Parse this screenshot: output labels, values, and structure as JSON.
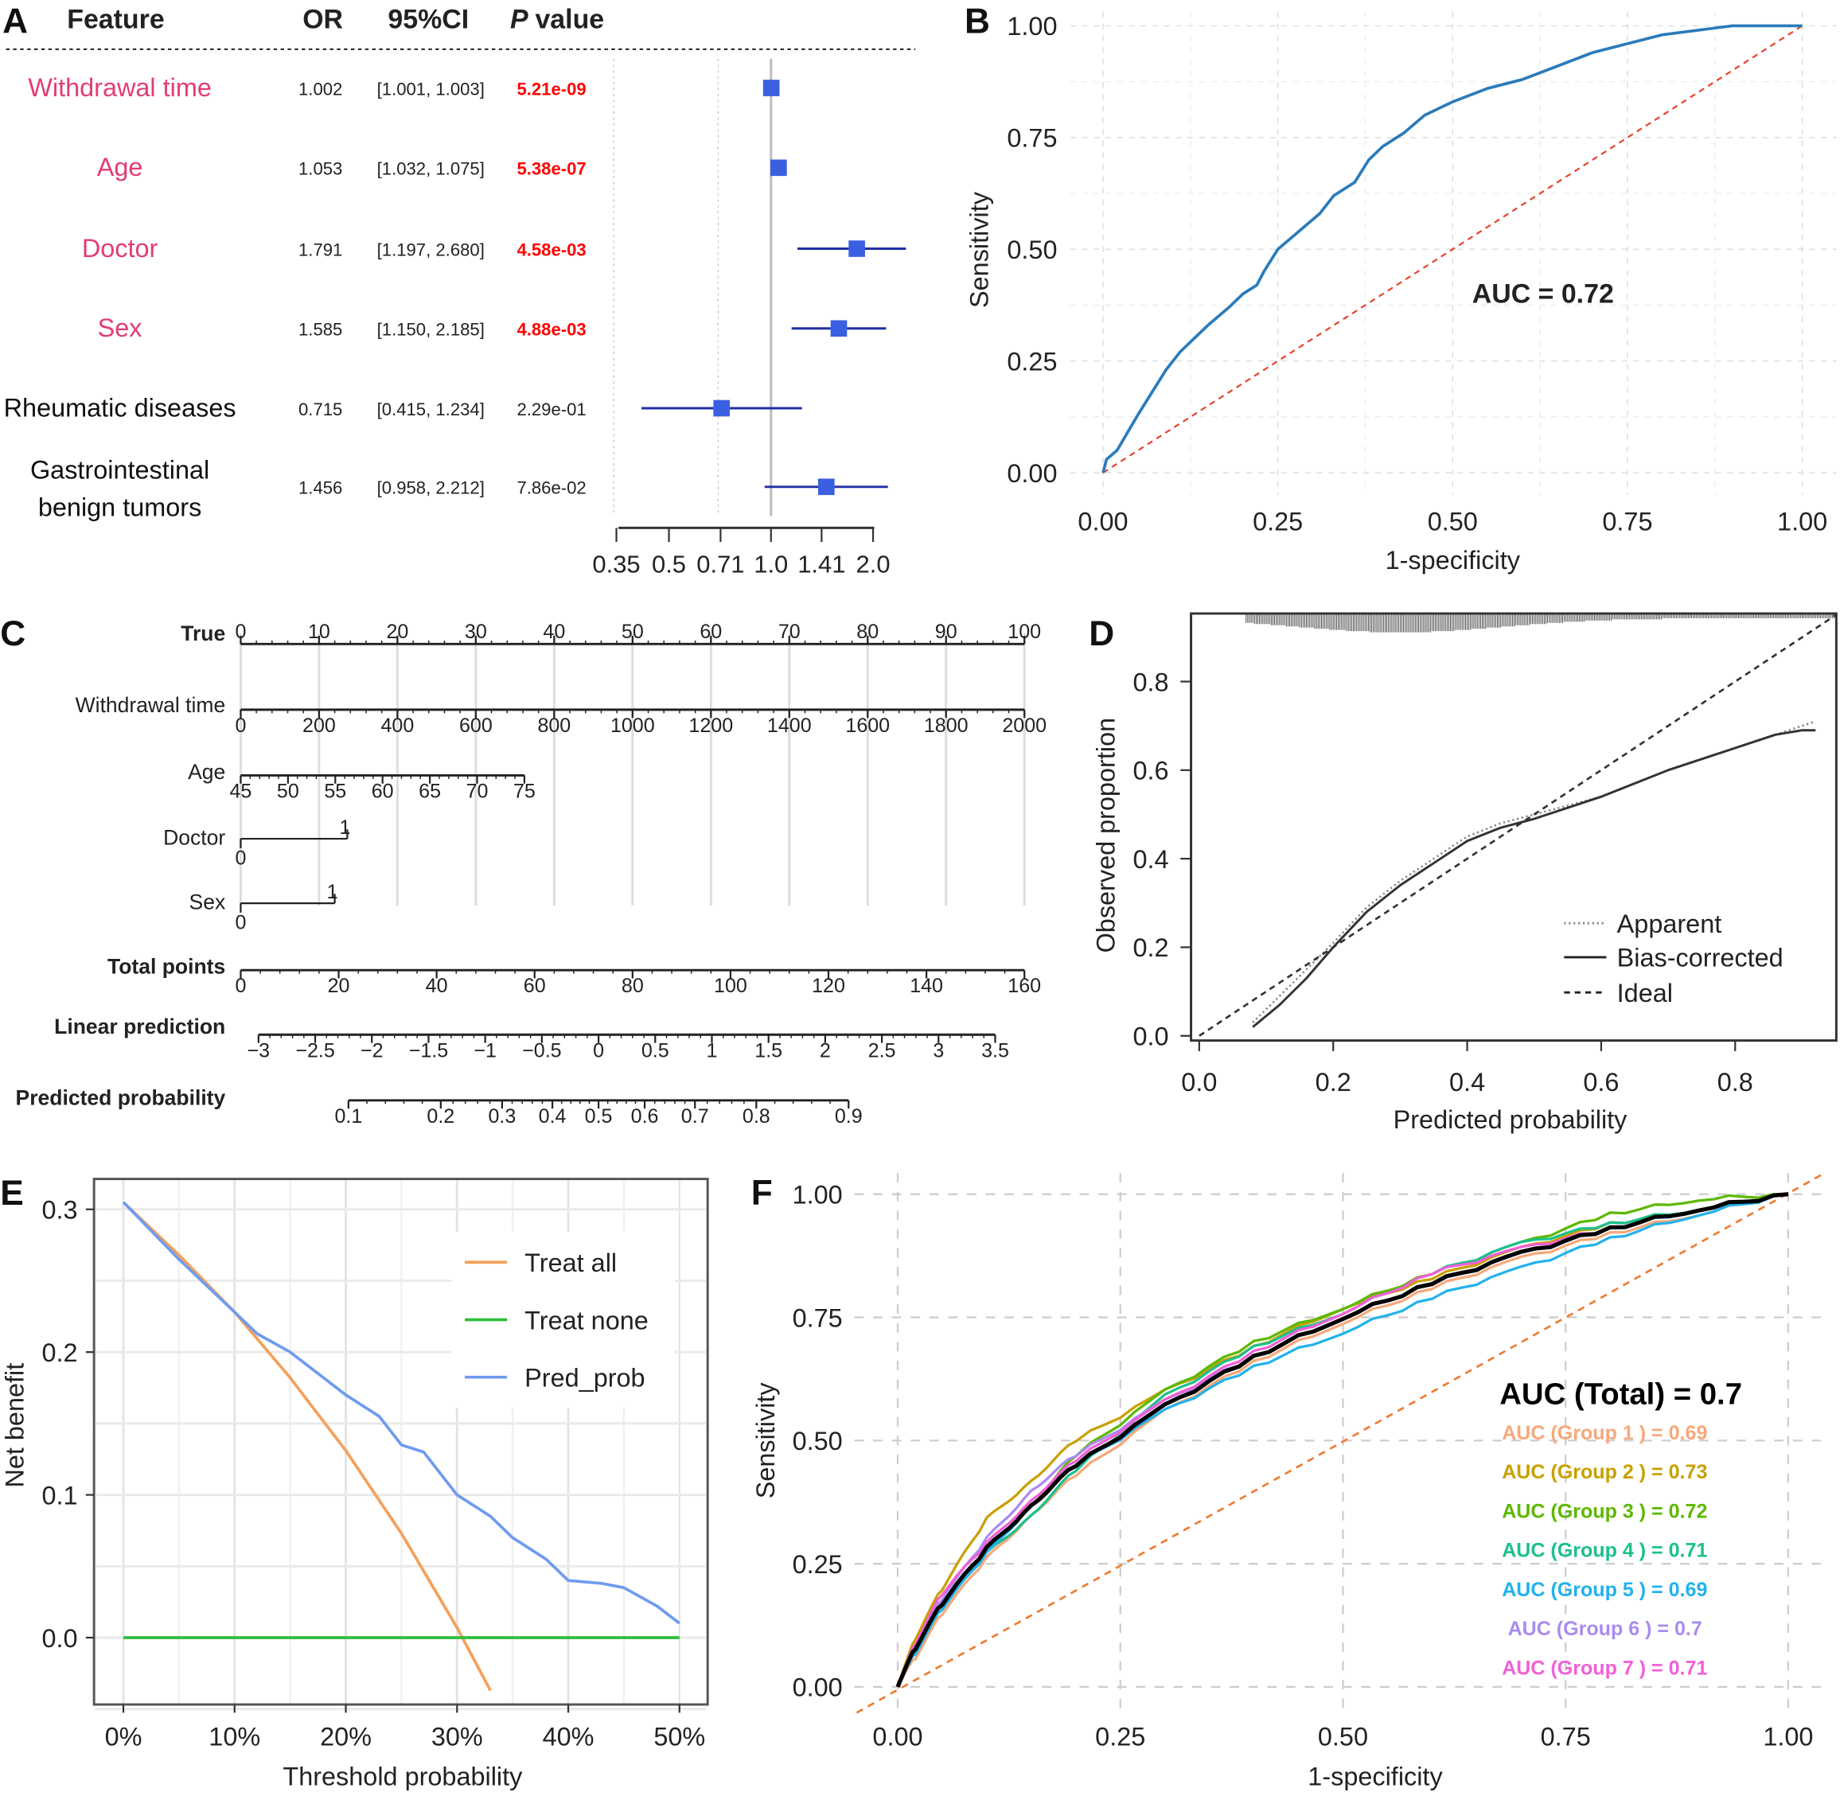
{
  "panels": [
    "A",
    "B",
    "C",
    "D",
    "E",
    "F"
  ],
  "chart_data": [
    {
      "panel": "A",
      "type": "forest",
      "headers": {
        "feature": "Feature",
        "or": "OR",
        "ci": "95%CI",
        "p_italic": "P",
        "p_rest": "value"
      },
      "xscale": "log",
      "xticks": [
        "0.35",
        "0.5",
        "0.71",
        "1.0",
        "1.41",
        "2.0"
      ],
      "reference_line": 1.0,
      "colors": {
        "significant_feature": "#E23C78",
        "significant_p": "#FF0000",
        "marker": "#3A5FE0",
        "ci_line": "#1F2FA8"
      },
      "rows": [
        {
          "feature": [
            "Withdrawal time"
          ],
          "or": "1.002",
          "ci": "[1.001, 1.003]",
          "p": "5.21e-09",
          "significant": true,
          "est": 1.002,
          "lo": 1.001,
          "hi": 1.003
        },
        {
          "feature": [
            "Age"
          ],
          "or": "1.053",
          "ci": "[1.032, 1.075]",
          "p": "5.38e-07",
          "significant": true,
          "est": 1.053,
          "lo": 1.032,
          "hi": 1.075
        },
        {
          "feature": [
            "Doctor"
          ],
          "or": "1.791",
          "ci": "[1.197, 2.680]",
          "p": "4.58e-03",
          "significant": true,
          "est": 1.791,
          "lo": 1.197,
          "hi": 2.68
        },
        {
          "feature": [
            "Sex"
          ],
          "or": "1.585",
          "ci": "[1.150, 2.185]",
          "p": "4.88e-03",
          "significant": true,
          "est": 1.585,
          "lo": 1.15,
          "hi": 2.185
        },
        {
          "feature": [
            "Rheumatic diseases"
          ],
          "or": "0.715",
          "ci": "[0.415, 1.234]",
          "p": "2.29e-01",
          "significant": false,
          "est": 0.715,
          "lo": 0.415,
          "hi": 1.234
        },
        {
          "feature": [
            "Gastrointestinal",
            "benign tumors"
          ],
          "or": "1.456",
          "ci": "[0.958, 2.212]",
          "p": "7.86e-02",
          "significant": false,
          "est": 1.456,
          "lo": 0.958,
          "hi": 2.212
        }
      ]
    },
    {
      "panel": "B",
      "type": "line",
      "xlabel": "1-specificity",
      "ylabel": "Sensitivity",
      "xlim": [
        0,
        1
      ],
      "ylim": [
        0,
        1
      ],
      "xticks": [
        "0.00",
        "0.25",
        "0.50",
        "0.75",
        "1.00"
      ],
      "yticks": [
        "0.00",
        "0.25",
        "0.50",
        "0.75",
        "1.00"
      ],
      "grid": true,
      "annotation": "AUC = 0.72",
      "colors": {
        "curve": "#2B7BBA",
        "diagonal": "#E8432E"
      },
      "x": [
        0,
        0.005,
        0.02,
        0.035,
        0.05,
        0.07,
        0.09,
        0.11,
        0.13,
        0.15,
        0.18,
        0.2,
        0.22,
        0.23,
        0.25,
        0.28,
        0.31,
        0.33,
        0.36,
        0.38,
        0.4,
        0.43,
        0.46,
        0.5,
        0.55,
        0.6,
        0.65,
        0.7,
        0.75,
        0.8,
        0.85,
        0.9,
        1
      ],
      "y": [
        0,
        0.03,
        0.05,
        0.09,
        0.13,
        0.18,
        0.23,
        0.27,
        0.3,
        0.33,
        0.37,
        0.4,
        0.42,
        0.45,
        0.5,
        0.54,
        0.58,
        0.62,
        0.65,
        0.7,
        0.73,
        0.76,
        0.8,
        0.83,
        0.86,
        0.88,
        0.91,
        0.94,
        0.96,
        0.98,
        0.99,
        1,
        1
      ]
    },
    {
      "panel": "C",
      "type": "nomogram",
      "rows": [
        {
          "label": "True",
          "bold": true,
          "min": 0,
          "max": 100,
          "ticks": [
            "0",
            "10",
            "20",
            "30",
            "40",
            "50",
            "60",
            "70",
            "80",
            "90",
            "100"
          ],
          "points_range": [
            0,
            100
          ],
          "labels_above": true
        },
        {
          "label": "Withdrawal time",
          "bold": false,
          "min": 0,
          "max": 2000,
          "ticks": [
            "0",
            "200",
            "400",
            "600",
            "800",
            "1000",
            "1200",
            "1400",
            "1600",
            "1800",
            "2000"
          ],
          "points_range": [
            0,
            100
          ]
        },
        {
          "label": "Age",
          "bold": false,
          "min": 45,
          "max": 75,
          "ticks": [
            "45",
            "50",
            "55",
            "60",
            "65",
            "70",
            "75"
          ],
          "points_range": [
            0,
            36.2
          ]
        },
        {
          "label": "Doctor",
          "bold": false,
          "categorical": true,
          "levels": [
            "0",
            "1"
          ],
          "points_range": [
            0,
            13.6
          ]
        },
        {
          "label": "Sex",
          "bold": false,
          "categorical": true,
          "levels": [
            "0",
            "1"
          ],
          "points_range": [
            0,
            12
          ]
        },
        {
          "label": "Total points",
          "bold": true,
          "min": 0,
          "max": 160,
          "ticks": [
            "0",
            "20",
            "40",
            "60",
            "80",
            "100",
            "120",
            "140",
            "160"
          ],
          "points_range": [
            0,
            100
          ]
        },
        {
          "label": "Linear prediction",
          "bold": true,
          "min": -3,
          "max": 3.5,
          "ticks": [
            "−3",
            "−2.5",
            "−2",
            "−1.5",
            "−1",
            "−0.5",
            "0",
            "0.5",
            "1",
            "1.5",
            "2",
            "2.5",
            "3",
            "3.5"
          ]
        },
        {
          "label": "Predicted probability",
          "bold": true,
          "scale": "logit",
          "ticks": [
            "0.1",
            "0.2",
            "0.3",
            "0.4",
            "0.5",
            "0.6",
            "0.7",
            "0.8",
            "0.9"
          ]
        }
      ]
    },
    {
      "panel": "D",
      "type": "line",
      "xlabel": "Predicted probability",
      "ylabel": "Observed proportion",
      "xticks": [
        "0.0",
        "0.2",
        "0.4",
        "0.6",
        "0.8"
      ],
      "yticks": [
        "0.0",
        "0.2",
        "0.4",
        "0.6",
        "0.8"
      ],
      "legend": {
        "position": "bottom-right",
        "entries": [
          "Apparent",
          "Bias-corrected",
          "Ideal"
        ]
      },
      "series": [
        {
          "name": "Apparent",
          "style": "dotted",
          "x": [
            0.08,
            0.12,
            0.16,
            0.2,
            0.25,
            0.3,
            0.35,
            0.4,
            0.45,
            0.5,
            0.6,
            0.7,
            0.8,
            0.86,
            0.9,
            0.92
          ],
          "y": [
            0.03,
            0.09,
            0.15,
            0.21,
            0.29,
            0.35,
            0.4,
            0.45,
            0.48,
            0.5,
            0.54,
            0.6,
            0.65,
            0.68,
            0.7,
            0.71
          ]
        },
        {
          "name": "Bias-corrected",
          "style": "solid",
          "x": [
            0.08,
            0.12,
            0.16,
            0.2,
            0.25,
            0.3,
            0.35,
            0.4,
            0.45,
            0.5,
            0.6,
            0.7,
            0.8,
            0.86,
            0.9,
            0.92
          ],
          "y": [
            0.02,
            0.07,
            0.13,
            0.2,
            0.28,
            0.34,
            0.39,
            0.44,
            0.47,
            0.49,
            0.54,
            0.6,
            0.65,
            0.68,
            0.69,
            0.69
          ]
        },
        {
          "name": "Ideal",
          "style": "dashed",
          "x": [
            0,
            0.95
          ],
          "y": [
            0,
            0.95
          ]
        }
      ],
      "rug_range": [
        0.07,
        0.95
      ]
    },
    {
      "panel": "E",
      "type": "line",
      "xlabel": "Threshold probability",
      "ylabel": "Net benefit",
      "xticks": [
        "0%",
        "10%",
        "20%",
        "30%",
        "40%",
        "50%"
      ],
      "yticks": [
        "0.0",
        "0.1",
        "0.2",
        "0.3"
      ],
      "xlim": [
        0,
        0.5
      ],
      "ylim": [
        -0.047,
        0.31
      ],
      "legend": {
        "position": "top-right"
      },
      "series": [
        {
          "name": "Treat all",
          "color": "#F5A05A",
          "x": [
            0,
            0.05,
            0.1,
            0.15,
            0.2,
            0.25,
            0.3,
            0.33
          ],
          "y": [
            0.305,
            0.268,
            0.228,
            0.182,
            0.131,
            0.073,
            0.007,
            -0.037
          ]
        },
        {
          "name": "Treat none",
          "color": "#2DBF3C",
          "x": [
            0,
            0.5
          ],
          "y": [
            0,
            0
          ]
        },
        {
          "name": "Pred_prob",
          "color": "#6F9BEF",
          "x": [
            0,
            0.05,
            0.1,
            0.12,
            0.15,
            0.18,
            0.2,
            0.23,
            0.25,
            0.27,
            0.3,
            0.33,
            0.35,
            0.38,
            0.4,
            0.43,
            0.45,
            0.48,
            0.5
          ],
          "y": [
            0.305,
            0.265,
            0.228,
            0.213,
            0.2,
            0.182,
            0.17,
            0.155,
            0.135,
            0.13,
            0.1,
            0.085,
            0.07,
            0.055,
            0.04,
            0.038,
            0.035,
            0.022,
            0.01
          ]
        }
      ]
    },
    {
      "panel": "F",
      "type": "line",
      "xlabel": "1-specificity",
      "ylabel": "Sensitivity",
      "xticks": [
        "0.00",
        "0.25",
        "0.50",
        "0.75",
        "1.00"
      ],
      "yticks": [
        "0.00",
        "0.25",
        "0.50",
        "0.75",
        "1.00"
      ],
      "grid": true,
      "diagonal_color": "#F07A30",
      "title_annotation": "AUC (Total) = 0.7",
      "x": [
        0,
        0.02,
        0.05,
        0.1,
        0.15,
        0.2,
        0.3,
        0.4,
        0.5,
        0.6,
        0.7,
        0.8,
        0.9,
        1
      ],
      "series": [
        {
          "name": "AUC (Group 1 ) = 0.69",
          "color": "#F7A87A",
          "y": [
            0,
            0.06,
            0.15,
            0.26,
            0.35,
            0.43,
            0.56,
            0.66,
            0.74,
            0.81,
            0.87,
            0.92,
            0.96,
            1
          ]
        },
        {
          "name": "AUC (Group 2 ) = 0.73",
          "color": "#C9A000",
          "y": [
            0,
            0.1,
            0.2,
            0.34,
            0.42,
            0.5,
            0.6,
            0.69,
            0.77,
            0.83,
            0.89,
            0.94,
            0.97,
            1
          ]
        },
        {
          "name": "AUC (Group 3 ) = 0.72",
          "color": "#5DB800",
          "y": [
            0,
            0.08,
            0.17,
            0.28,
            0.37,
            0.47,
            0.6,
            0.7,
            0.77,
            0.84,
            0.9,
            0.96,
            0.99,
            1
          ]
        },
        {
          "name": "AUC (Group 4 ) = 0.71",
          "color": "#1CC08E",
          "y": [
            0,
            0.07,
            0.16,
            0.27,
            0.35,
            0.44,
            0.59,
            0.69,
            0.76,
            0.84,
            0.9,
            0.94,
            0.97,
            1
          ]
        },
        {
          "name": "AUC (Group 5 ) = 0.69",
          "color": "#22B2EC",
          "y": [
            0,
            0.07,
            0.16,
            0.27,
            0.37,
            0.45,
            0.56,
            0.65,
            0.72,
            0.79,
            0.85,
            0.91,
            0.96,
            1
          ]
        },
        {
          "name": "AUC (Group 6 ) = 0.7",
          "color": "#A98CF0",
          "y": [
            0,
            0.08,
            0.18,
            0.3,
            0.4,
            0.47,
            0.58,
            0.67,
            0.75,
            0.82,
            0.88,
            0.93,
            0.97,
            1
          ]
        },
        {
          "name": "AUC (Group 7 ) = 0.71",
          "color": "#F25FD6",
          "y": [
            0,
            0.09,
            0.19,
            0.29,
            0.38,
            0.46,
            0.58,
            0.68,
            0.76,
            0.84,
            0.89,
            0.93,
            0.97,
            1
          ]
        },
        {
          "name": "Total",
          "color": "#000000",
          "y": [
            0,
            0.08,
            0.17,
            0.28,
            0.37,
            0.45,
            0.57,
            0.67,
            0.75,
            0.82,
            0.88,
            0.93,
            0.97,
            1
          ]
        }
      ]
    }
  ]
}
